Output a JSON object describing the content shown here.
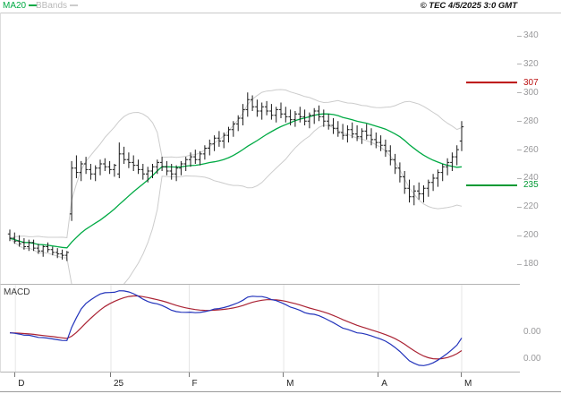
{
  "header": {
    "ma20_label": "MA20",
    "bbands_label": "BBands",
    "copyright": "© TEC 4/5/2025 3:0 GMT"
  },
  "chart_data": {
    "type": "candlestick",
    "title": "",
    "x_axis": {
      "labels": [
        {
          "text": "D",
          "x": 0.028
        },
        {
          "text": "25",
          "x": 0.212
        },
        {
          "text": "F",
          "x": 0.363
        },
        {
          "text": "M",
          "x": 0.545
        },
        {
          "text": "A",
          "x": 0.728
        },
        {
          "text": "M",
          "x": 0.888
        }
      ]
    },
    "price_axis": {
      "ticks": [
        340,
        320,
        300,
        280,
        260,
        240,
        220,
        200,
        180
      ],
      "ylim": [
        166,
        356
      ]
    },
    "levels": [
      {
        "label": "307",
        "value": 307,
        "color": "#bb1111"
      },
      {
        "label": "235",
        "value": 235,
        "color": "#009933"
      }
    ],
    "indicators": {
      "ma_period": 20,
      "bb_period": 20,
      "bb_stddev": 2,
      "macd_fast": 12,
      "macd_slow": 26,
      "macd_signal": 9
    },
    "macd_panel": {
      "label": "MACD",
      "right_labels": [
        "0.00",
        "0.00"
      ]
    },
    "colors": {
      "candle": "#1a1a1a",
      "ma20": "#00aa44",
      "bbands": "#cccccc",
      "macd_line": "#2233bb",
      "signal_line": "#aa2233",
      "grid": "#e6e6e6",
      "axis_text": "#98989a"
    },
    "candles": [
      [
        201,
        204,
        196,
        198
      ],
      [
        198,
        202,
        194,
        196
      ],
      [
        196,
        200,
        192,
        194
      ],
      [
        195,
        198,
        190,
        192
      ],
      [
        192,
        197,
        189,
        195
      ],
      [
        195,
        197,
        189,
        191
      ],
      [
        191,
        194,
        187,
        189
      ],
      [
        189,
        193,
        185,
        192
      ],
      [
        192,
        195,
        188,
        190
      ],
      [
        190,
        192,
        186,
        188
      ],
      [
        188,
        191,
        184,
        187
      ],
      [
        187,
        190,
        183,
        186
      ],
      [
        186,
        189,
        182,
        188
      ],
      [
        215,
        252,
        210,
        247
      ],
      [
        247,
        256,
        240,
        244
      ],
      [
        244,
        252,
        238,
        250
      ],
      [
        250,
        255,
        243,
        246
      ],
      [
        246,
        250,
        239,
        243
      ],
      [
        243,
        249,
        238,
        247
      ],
      [
        247,
        253,
        242,
        250
      ],
      [
        250,
        254,
        245,
        248
      ],
      [
        248,
        252,
        243,
        246
      ],
      [
        246,
        250,
        241,
        249
      ],
      [
        243,
        265,
        240,
        257
      ],
      [
        257,
        262,
        250,
        253
      ],
      [
        253,
        258,
        247,
        251
      ],
      [
        251,
        256,
        245,
        249
      ],
      [
        249,
        253,
        243,
        246
      ],
      [
        246,
        250,
        239,
        243
      ],
      [
        243,
        248,
        237,
        245
      ],
      [
        245,
        250,
        240,
        248
      ],
      [
        248,
        253,
        243,
        251
      ],
      [
        251,
        255,
        245,
        248
      ],
      [
        248,
        252,
        242,
        245
      ],
      [
        245,
        250,
        239,
        243
      ],
      [
        243,
        249,
        238,
        247
      ],
      [
        247,
        252,
        242,
        250
      ],
      [
        250,
        255,
        245,
        253
      ],
      [
        253,
        258,
        248,
        255
      ],
      [
        255,
        260,
        250,
        253
      ],
      [
        253,
        259,
        249,
        257
      ],
      [
        257,
        263,
        253,
        261
      ],
      [
        261,
        267,
        256,
        264
      ],
      [
        264,
        270,
        259,
        268
      ],
      [
        268,
        273,
        262,
        266
      ],
      [
        266,
        272,
        261,
        270
      ],
      [
        270,
        276,
        265,
        274
      ],
      [
        274,
        280,
        269,
        278
      ],
      [
        278,
        284,
        273,
        282
      ],
      [
        282,
        292,
        277,
        288
      ],
      [
        288,
        300,
        283,
        295
      ],
      [
        295,
        298,
        287,
        290
      ],
      [
        290,
        295,
        283,
        287
      ],
      [
        287,
        293,
        281,
        290
      ],
      [
        290,
        294,
        284,
        287
      ],
      [
        287,
        292,
        281,
        284
      ],
      [
        284,
        290,
        279,
        288
      ],
      [
        288,
        293,
        282,
        285
      ],
      [
        285,
        290,
        279,
        283
      ],
      [
        283,
        288,
        277,
        281
      ],
      [
        281,
        287,
        276,
        285
      ],
      [
        285,
        290,
        279,
        283
      ],
      [
        283,
        288,
        277,
        280
      ],
      [
        280,
        286,
        275,
        284
      ],
      [
        284,
        289,
        278,
        287
      ],
      [
        287,
        291,
        280,
        283
      ],
      [
        283,
        288,
        276,
        280
      ],
      [
        280,
        285,
        274,
        277
      ],
      [
        277,
        282,
        271,
        275
      ],
      [
        275,
        280,
        269,
        272
      ],
      [
        272,
        278,
        267,
        270
      ],
      [
        270,
        277,
        265,
        274
      ],
      [
        274,
        279,
        268,
        271
      ],
      [
        271,
        277,
        266,
        269
      ],
      [
        269,
        275,
        264,
        273
      ],
      [
        273,
        278,
        267,
        270
      ],
      [
        270,
        275,
        263,
        267
      ],
      [
        267,
        272,
        261,
        265
      ],
      [
        265,
        270,
        259,
        263
      ],
      [
        263,
        267,
        255,
        259
      ],
      [
        259,
        263,
        249,
        253
      ],
      [
        253,
        257,
        243,
        247
      ],
      [
        247,
        251,
        237,
        241
      ],
      [
        241,
        245,
        229,
        233
      ],
      [
        233,
        239,
        223,
        227
      ],
      [
        227,
        235,
        221,
        231
      ],
      [
        231,
        237,
        225,
        229
      ],
      [
        229,
        235,
        223,
        233
      ],
      [
        233,
        239,
        227,
        237
      ],
      [
        237,
        243,
        231,
        240
      ],
      [
        240,
        246,
        234,
        244
      ],
      [
        244,
        250,
        238,
        248
      ],
      [
        248,
        254,
        242,
        251
      ],
      [
        251,
        258,
        245,
        255
      ],
      [
        255,
        263,
        249,
        260
      ],
      [
        266,
        280,
        259,
        276
      ]
    ]
  }
}
